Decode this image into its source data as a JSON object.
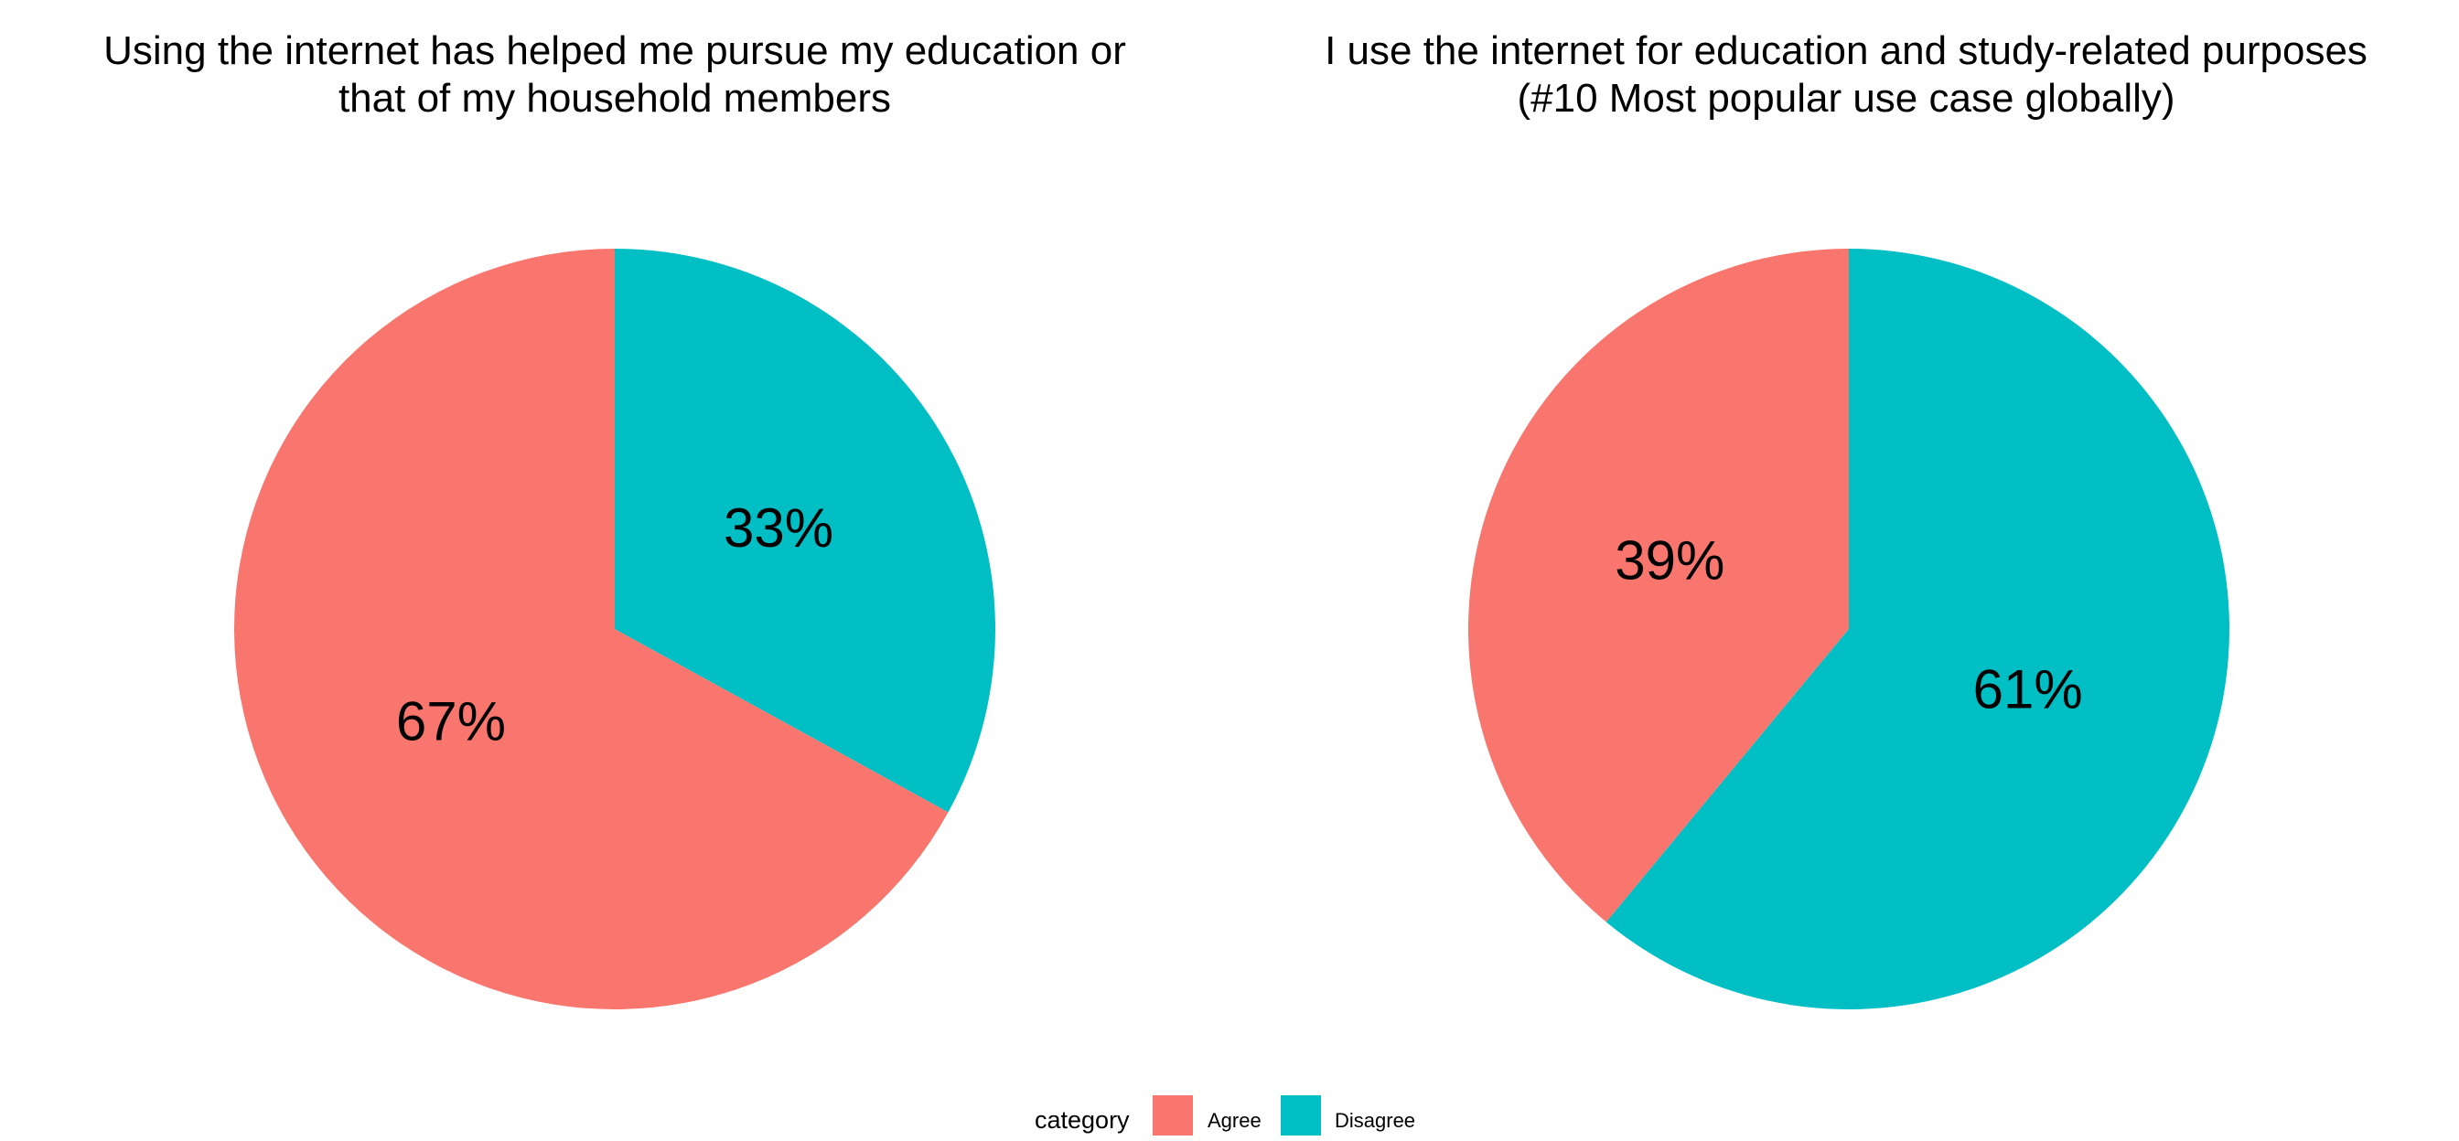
{
  "legend": {
    "title": "category",
    "items": [
      {
        "label": "Agree",
        "color": "#F8766D"
      },
      {
        "label": "Disagree",
        "color": "#00BFC4"
      }
    ]
  },
  "chart_data": [
    {
      "type": "pie",
      "title": "Using the internet has helped me pursue my education or that of my household members",
      "categories": [
        "Agree",
        "Disagree"
      ],
      "values": [
        67,
        33
      ],
      "labels": [
        "67%",
        "33%"
      ],
      "colors": [
        "#F8766D",
        "#00BFC4"
      ],
      "legend": "bottom"
    },
    {
      "type": "pie",
      "title": "I use the internet for education and study-related purposes (#10 Most popular use case globally)",
      "categories": [
        "Agree",
        "Disagree"
      ],
      "values": [
        39,
        61
      ],
      "labels": [
        "39%",
        "61%"
      ],
      "colors": [
        "#F8766D",
        "#00BFC4"
      ],
      "legend": "bottom"
    }
  ]
}
